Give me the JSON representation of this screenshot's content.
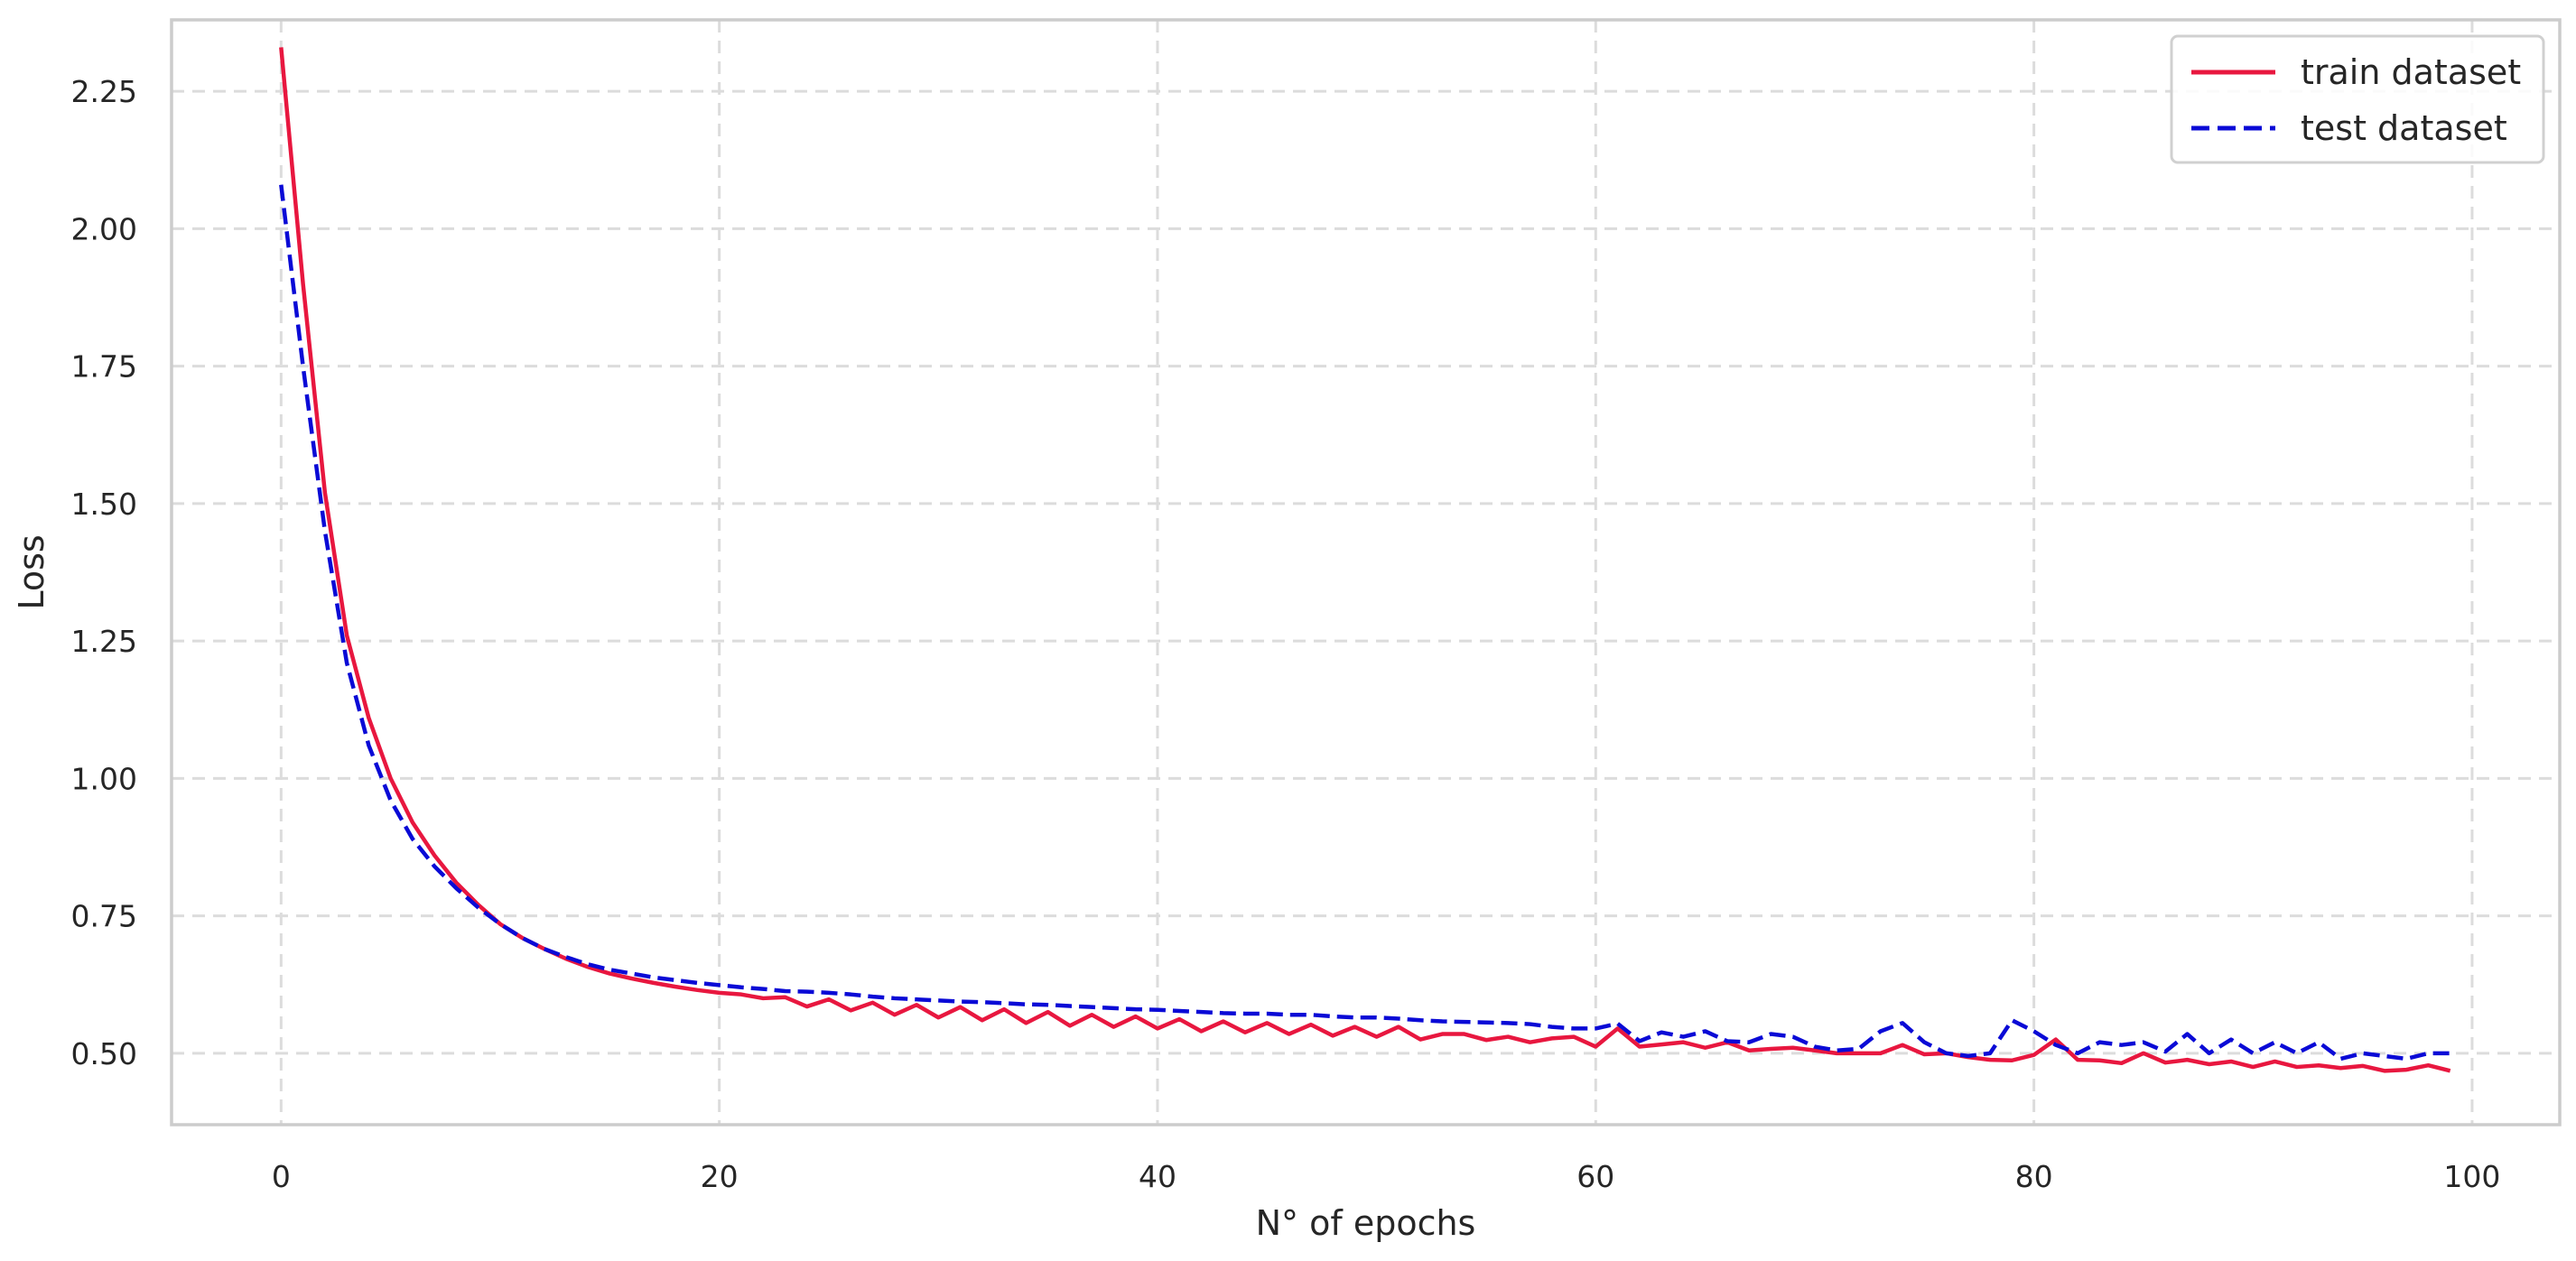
{
  "chart_data": {
    "type": "line",
    "title": "",
    "xlabel": "N° of epochs",
    "ylabel": "Loss",
    "xlim": [
      -5,
      104
    ],
    "ylim": [
      0.37,
      2.38
    ],
    "xticks": [
      0,
      20,
      40,
      60,
      80,
      100
    ],
    "yticks": [
      0.5,
      0.75,
      1.0,
      1.25,
      1.5,
      1.75,
      2.0,
      2.25
    ],
    "xtick_labels": [
      "0",
      "20",
      "40",
      "60",
      "80",
      "100"
    ],
    "ytick_labels": [
      "0.50",
      "0.75",
      "1.00",
      "1.25",
      "1.50",
      "1.75",
      "2.00",
      "2.25"
    ],
    "grid": true,
    "grid_style": "dashed",
    "legend_position": "upper right",
    "x": [
      0,
      1,
      2,
      3,
      4,
      5,
      6,
      7,
      8,
      9,
      10,
      11,
      12,
      13,
      14,
      15,
      16,
      17,
      18,
      19,
      20,
      21,
      22,
      23,
      24,
      25,
      26,
      27,
      28,
      29,
      30,
      31,
      32,
      33,
      34,
      35,
      36,
      37,
      38,
      39,
      40,
      41,
      42,
      43,
      44,
      45,
      46,
      47,
      48,
      49,
      50,
      51,
      52,
      53,
      54,
      55,
      56,
      57,
      58,
      59,
      60,
      61,
      62,
      63,
      64,
      65,
      66,
      67,
      68,
      69,
      70,
      71,
      72,
      73,
      74,
      75,
      76,
      77,
      78,
      79,
      80,
      81,
      82,
      83,
      84,
      85,
      86,
      87,
      88,
      89,
      90,
      91,
      92,
      93,
      94,
      95,
      96,
      97,
      98,
      99
    ],
    "series": [
      {
        "name": "train dataset",
        "color": "#e8173f",
        "style": "solid",
        "values": [
          2.33,
          1.9,
          1.52,
          1.26,
          1.11,
          1.0,
          0.92,
          0.86,
          0.81,
          0.77,
          0.735,
          0.71,
          0.69,
          0.672,
          0.657,
          0.645,
          0.636,
          0.628,
          0.621,
          0.615,
          0.61,
          0.607,
          0.6,
          0.602,
          0.585,
          0.598,
          0.578,
          0.592,
          0.57,
          0.588,
          0.565,
          0.584,
          0.56,
          0.58,
          0.555,
          0.575,
          0.55,
          0.57,
          0.548,
          0.567,
          0.545,
          0.562,
          0.54,
          0.558,
          0.538,
          0.555,
          0.535,
          0.552,
          0.532,
          0.548,
          0.53,
          0.548,
          0.525,
          0.535,
          0.535,
          0.524,
          0.53,
          0.52,
          0.527,
          0.53,
          0.512,
          0.545,
          0.512,
          0.516,
          0.52,
          0.51,
          0.52,
          0.505,
          0.508,
          0.51,
          0.505,
          0.5,
          0.5,
          0.5,
          0.515,
          0.498,
          0.5,
          0.493,
          0.488,
          0.487,
          0.497,
          0.525,
          0.488,
          0.487,
          0.482,
          0.5,
          0.483,
          0.488,
          0.48,
          0.485,
          0.475,
          0.485,
          0.475,
          0.478,
          0.473,
          0.477,
          0.468,
          0.47,
          0.478,
          0.468
        ]
      },
      {
        "name": "test dataset",
        "color": "#0a0ad6",
        "style": "dashed",
        "values": [
          2.08,
          1.75,
          1.45,
          1.21,
          1.06,
          0.96,
          0.89,
          0.84,
          0.8,
          0.765,
          0.735,
          0.71,
          0.69,
          0.675,
          0.662,
          0.652,
          0.645,
          0.638,
          0.633,
          0.628,
          0.624,
          0.62,
          0.617,
          0.613,
          0.612,
          0.61,
          0.607,
          0.603,
          0.6,
          0.598,
          0.596,
          0.594,
          0.593,
          0.591,
          0.589,
          0.588,
          0.586,
          0.584,
          0.582,
          0.58,
          0.579,
          0.577,
          0.575,
          0.573,
          0.572,
          0.572,
          0.57,
          0.57,
          0.567,
          0.565,
          0.565,
          0.563,
          0.56,
          0.558,
          0.557,
          0.556,
          0.555,
          0.553,
          0.548,
          0.545,
          0.545,
          0.554,
          0.522,
          0.538,
          0.53,
          0.54,
          0.522,
          0.52,
          0.535,
          0.53,
          0.512,
          0.505,
          0.508,
          0.54,
          0.555,
          0.52,
          0.5,
          0.495,
          0.5,
          0.56,
          0.54,
          0.515,
          0.5,
          0.52,
          0.515,
          0.52,
          0.503,
          0.535,
          0.5,
          0.525,
          0.5,
          0.52,
          0.5,
          0.52,
          0.49,
          0.5,
          0.495,
          0.49,
          0.5,
          0.5
        ]
      }
    ]
  }
}
